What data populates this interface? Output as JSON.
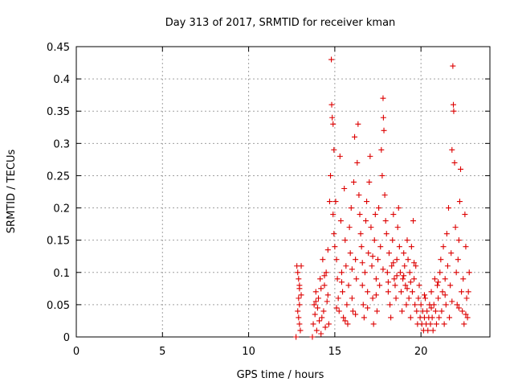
{
  "chart_data": {
    "type": "scatter",
    "title": "Day 313 of 2017, SRMTID for receiver kman",
    "xlabel": "GPS time / hours",
    "ylabel": "SRMTID / TECUs",
    "xlim": [
      0,
      24
    ],
    "ylim": [
      0,
      0.45
    ],
    "xticks": [
      "0",
      "5",
      "10",
      "15",
      "20"
    ],
    "yticks": [
      "0",
      "0.05",
      "0.1",
      "0.15",
      "0.2",
      "0.25",
      "0.3",
      "0.35",
      "0.4",
      "0.45"
    ],
    "grid": true,
    "marker": "+",
    "color": "#dd0000",
    "series": [
      {
        "values": [
          [
            12.75,
            0.0
          ],
          [
            12.8,
            0.11
          ],
          [
            12.85,
            0.1
          ],
          [
            12.9,
            0.09
          ],
          [
            12.95,
            0.08
          ],
          [
            12.9,
            0.06
          ],
          [
            12.95,
            0.05
          ],
          [
            12.85,
            0.04
          ],
          [
            12.9,
            0.03
          ],
          [
            12.95,
            0.02
          ],
          [
            13.0,
            0.01
          ],
          [
            13.05,
            0.11
          ],
          [
            12.95,
            0.075
          ],
          [
            13.05,
            0.065
          ],
          [
            13.7,
            0.0
          ],
          [
            13.75,
            0.02
          ],
          [
            13.8,
            0.05
          ],
          [
            13.85,
            0.035
          ],
          [
            13.9,
            0.07
          ],
          [
            13.95,
            0.01
          ],
          [
            14.0,
            0.045
          ],
          [
            14.05,
            0.06
          ],
          [
            14.1,
            0.025
          ],
          [
            14.15,
            0.09
          ],
          [
            14.2,
            0.005
          ],
          [
            14.25,
            0.03
          ],
          [
            14.3,
            0.12
          ],
          [
            14.35,
            0.04
          ],
          [
            14.4,
            0.08
          ],
          [
            14.45,
            0.015
          ],
          [
            14.5,
            0.1
          ],
          [
            14.55,
            0.055
          ],
          [
            14.6,
            0.135
          ],
          [
            14.65,
            0.02
          ],
          [
            14.7,
            0.21
          ],
          [
            14.75,
            0.25
          ],
          [
            14.8,
            0.43
          ],
          [
            14.82,
            0.36
          ],
          [
            14.85,
            0.34
          ],
          [
            14.9,
            0.33
          ],
          [
            14.95,
            0.29
          ],
          [
            14.9,
            0.19
          ],
          [
            14.95,
            0.16
          ],
          [
            15.0,
            0.14
          ],
          [
            15.05,
            0.21
          ],
          [
            15.1,
            0.12
          ],
          [
            15.15,
            0.09
          ],
          [
            15.2,
            0.06
          ],
          [
            15.25,
            0.04
          ],
          [
            15.3,
            0.28
          ],
          [
            15.35,
            0.18
          ],
          [
            15.4,
            0.1
          ],
          [
            15.45,
            0.07
          ],
          [
            15.5,
            0.03
          ],
          [
            15.55,
            0.23
          ],
          [
            15.6,
            0.15
          ],
          [
            15.65,
            0.11
          ],
          [
            15.7,
            0.05
          ],
          [
            15.75,
            0.02
          ],
          [
            15.8,
            0.08
          ],
          [
            15.85,
            0.17
          ],
          [
            15.9,
            0.13
          ],
          [
            15.95,
            0.2
          ],
          [
            16.0,
            0.06
          ],
          [
            16.05,
            0.04
          ],
          [
            16.1,
            0.24
          ],
          [
            16.15,
            0.31
          ],
          [
            16.2,
            0.12
          ],
          [
            16.25,
            0.09
          ],
          [
            16.3,
            0.27
          ],
          [
            16.35,
            0.33
          ],
          [
            16.4,
            0.22
          ],
          [
            16.45,
            0.19
          ],
          [
            16.5,
            0.16
          ],
          [
            16.55,
            0.14
          ],
          [
            16.6,
            0.08
          ],
          [
            16.65,
            0.05
          ],
          [
            16.7,
            0.03
          ],
          [
            16.75,
            0.1
          ],
          [
            16.8,
            0.18
          ],
          [
            16.85,
            0.21
          ],
          [
            16.9,
            0.07
          ],
          [
            16.95,
            0.13
          ],
          [
            17.0,
            0.24
          ],
          [
            17.05,
            0.28
          ],
          [
            17.1,
            0.17
          ],
          [
            17.15,
            0.11
          ],
          [
            17.2,
            0.06
          ],
          [
            17.25,
            0.02
          ],
          [
            17.3,
            0.15
          ],
          [
            17.35,
            0.19
          ],
          [
            17.4,
            0.09
          ],
          [
            17.45,
            0.04
          ],
          [
            17.5,
            0.12
          ],
          [
            17.55,
            0.2
          ],
          [
            17.6,
            0.08
          ],
          [
            17.65,
            0.14
          ],
          [
            17.7,
            0.29
          ],
          [
            17.75,
            0.25
          ],
          [
            17.8,
            0.37
          ],
          [
            17.82,
            0.34
          ],
          [
            17.85,
            0.32
          ],
          [
            17.9,
            0.22
          ],
          [
            17.95,
            0.18
          ],
          [
            18.0,
            0.16
          ],
          [
            18.05,
            0.1
          ],
          [
            18.1,
            0.07
          ],
          [
            18.15,
            0.13
          ],
          [
            18.2,
            0.05
          ],
          [
            18.25,
            0.03
          ],
          [
            18.3,
            0.11
          ],
          [
            18.35,
            0.15
          ],
          [
            18.4,
            0.19
          ],
          [
            18.45,
            0.09
          ],
          [
            18.5,
            0.08
          ],
          [
            18.55,
            0.06
          ],
          [
            18.6,
            0.12
          ],
          [
            18.65,
            0.17
          ],
          [
            18.7,
            0.2
          ],
          [
            18.75,
            0.14
          ],
          [
            18.8,
            0.1
          ],
          [
            18.85,
            0.07
          ],
          [
            18.9,
            0.04
          ],
          [
            18.95,
            0.09
          ],
          [
            19.0,
            0.13
          ],
          [
            19.05,
            0.11
          ],
          [
            19.1,
            0.08
          ],
          [
            19.15,
            0.05
          ],
          [
            19.2,
            0.15
          ],
          [
            19.25,
            0.12
          ],
          [
            19.3,
            0.06
          ],
          [
            19.35,
            0.1
          ],
          [
            19.4,
            0.03
          ],
          [
            19.45,
            0.14
          ],
          [
            19.5,
            0.07
          ],
          [
            19.55,
            0.18
          ],
          [
            19.6,
            0.09
          ],
          [
            19.65,
            0.05
          ],
          [
            19.7,
            0.11
          ],
          [
            19.75,
            0.04
          ],
          [
            19.8,
            0.02
          ],
          [
            19.85,
            0.06
          ],
          [
            19.9,
            0.08
          ],
          [
            19.95,
            0.03
          ],
          [
            20.0,
            0.05
          ],
          [
            20.05,
            0.02
          ],
          [
            20.1,
            0.04
          ],
          [
            20.15,
            0.01
          ],
          [
            20.2,
            0.03
          ],
          [
            20.25,
            0.06
          ],
          [
            20.3,
            0.02
          ],
          [
            20.35,
            0.04
          ],
          [
            20.4,
            0.01
          ],
          [
            20.45,
            0.03
          ],
          [
            20.5,
            0.05
          ],
          [
            20.55,
            0.02
          ],
          [
            20.6,
            0.07
          ],
          [
            20.65,
            0.03
          ],
          [
            20.7,
            0.01
          ],
          [
            20.75,
            0.05
          ],
          [
            20.8,
            0.09
          ],
          [
            20.85,
            0.04
          ],
          [
            20.9,
            0.02
          ],
          [
            20.95,
            0.08
          ],
          [
            21.0,
            0.06
          ],
          [
            21.05,
            0.03
          ],
          [
            21.1,
            0.1
          ],
          [
            21.15,
            0.12
          ],
          [
            21.2,
            0.04
          ],
          [
            21.25,
            0.07
          ],
          [
            21.3,
            0.14
          ],
          [
            21.35,
            0.02
          ],
          [
            21.4,
            0.09
          ],
          [
            21.45,
            0.05
          ],
          [
            21.5,
            0.16
          ],
          [
            21.55,
            0.11
          ],
          [
            21.6,
            0.2
          ],
          [
            21.65,
            0.03
          ],
          [
            21.7,
            0.08
          ],
          [
            21.75,
            0.13
          ],
          [
            21.8,
            0.29
          ],
          [
            21.85,
            0.42
          ],
          [
            21.88,
            0.36
          ],
          [
            21.9,
            0.35
          ],
          [
            21.95,
            0.27
          ],
          [
            22.0,
            0.17
          ],
          [
            22.05,
            0.1
          ],
          [
            22.1,
            0.05
          ],
          [
            22.15,
            0.12
          ],
          [
            22.2,
            0.15
          ],
          [
            22.25,
            0.21
          ],
          [
            22.3,
            0.26
          ],
          [
            22.35,
            0.07
          ],
          [
            22.4,
            0.04
          ],
          [
            22.45,
            0.09
          ],
          [
            22.5,
            0.02
          ],
          [
            22.55,
            0.19
          ],
          [
            22.6,
            0.14
          ],
          [
            22.65,
            0.06
          ],
          [
            22.7,
            0.03
          ],
          [
            22.75,
            0.07
          ],
          [
            22.8,
            0.1
          ],
          [
            15.1,
            0.045
          ],
          [
            15.6,
            0.025
          ],
          [
            16.2,
            0.035
          ],
          [
            16.9,
            0.045
          ],
          [
            17.4,
            0.065
          ],
          [
            18.1,
            0.085
          ],
          [
            18.6,
            0.095
          ],
          [
            19.2,
            0.075
          ],
          [
            19.6,
            0.115
          ],
          [
            14.4,
            0.095
          ],
          [
            14.2,
            0.075
          ],
          [
            13.9,
            0.055
          ],
          [
            14.6,
            0.065
          ],
          [
            15.4,
            0.085
          ],
          [
            16.0,
            0.105
          ],
          [
            16.6,
            0.115
          ],
          [
            17.2,
            0.125
          ],
          [
            17.8,
            0.105
          ],
          [
            18.4,
            0.115
          ],
          [
            19.0,
            0.095
          ],
          [
            19.4,
            0.085
          ],
          [
            20.2,
            0.065
          ],
          [
            20.6,
            0.045
          ],
          [
            21.0,
            0.085
          ],
          [
            21.4,
            0.065
          ],
          [
            21.8,
            0.055
          ],
          [
            22.2,
            0.045
          ],
          [
            22.6,
            0.035
          ]
        ]
      }
    ]
  }
}
